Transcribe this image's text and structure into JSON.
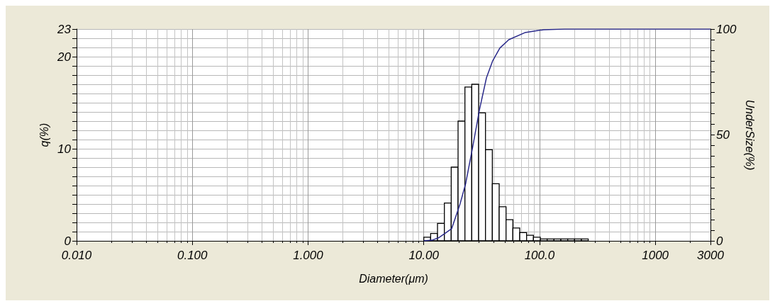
{
  "chart_data": {
    "type": "histogram",
    "xlabel": "Diameter(μm)",
    "ylabel": "q(%)",
    "y2label": "UnderSize(%)",
    "log": "x",
    "grid": true,
    "xlim": [
      0.01,
      3000
    ],
    "xticks": [
      {
        "value": 0.01,
        "label": "0.010"
      },
      {
        "value": 0.1,
        "label": "0.100"
      },
      {
        "value": 1,
        "label": "1.000"
      },
      {
        "value": 10,
        "label": "10.00"
      },
      {
        "value": 100,
        "label": "100.0"
      },
      1000,
      3000
    ],
    "ylim": [
      0,
      23
    ],
    "yticks": [
      0,
      10,
      20,
      23
    ],
    "y2lim": [
      0,
      100
    ],
    "y2ticks": [
      0,
      50,
      100
    ],
    "series": [
      {
        "color": "#000000",
        "bins": [
          10.0,
          11.46,
          13.14,
          15.06,
          17.26,
          19.78,
          22.67,
          25.98,
          29.78,
          34.13,
          39.11,
          44.82,
          51.37,
          58.87,
          67.47,
          77.32,
          88.61,
          101.6,
          116.4,
          133.4,
          152.9,
          175.2,
          200.8,
          230.1,
          263.7
        ],
        "values": [
          0.4,
          0.8,
          1.9,
          4.1,
          8.0,
          13.0,
          16.7,
          17.0,
          13.9,
          9.9,
          6.2,
          3.7,
          2.3,
          1.4,
          0.9,
          0.6,
          0.4,
          0.2,
          0.2,
          0.2,
          0.2,
          0.2,
          0.2,
          0.2
        ]
      },
      {
        "type": "line",
        "axis": "y2",
        "color": "#2a2a8a",
        "x": [
          10,
          11.8,
          13.6,
          17.4,
          20.6,
          23.0,
          26.4,
          30.3,
          34.8,
          39.4,
          45.4,
          54.3,
          74.7,
          108.6,
          165,
          3000
        ],
        "values": [
          0,
          0.3,
          1.6,
          5.7,
          17.5,
          27,
          44,
          62,
          77,
          85,
          91,
          95,
          98.3,
          99.7,
          100,
          100
        ]
      }
    ]
  }
}
